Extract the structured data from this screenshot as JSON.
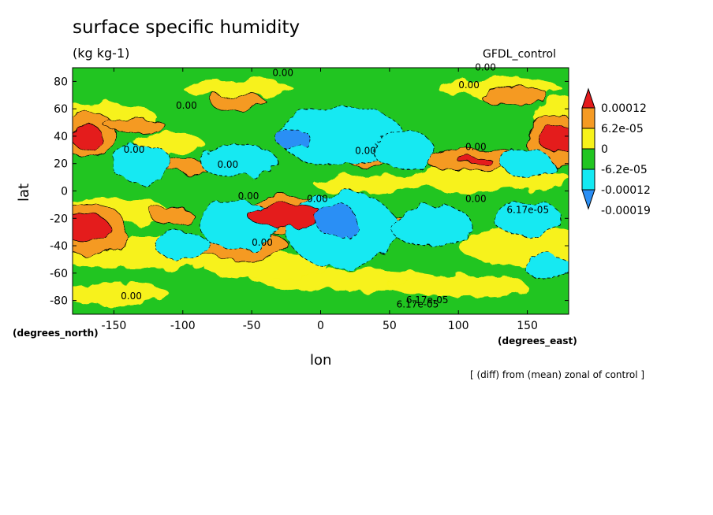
{
  "chart_data": {
    "type": "heatmap",
    "title": "surface specific humidity",
    "units": "(kg kg-1)",
    "dataset_label": "GFDL_control",
    "footnote": "[ (diff) from (mean) zonal of control ]",
    "xlabel": "lon",
    "ylabel": "lat",
    "x_unit_label": "(degrees_east)",
    "y_unit_label": "(degrees_north)",
    "xlim": [
      -180,
      180
    ],
    "ylim": [
      -90,
      90
    ],
    "x_ticks": [
      -150,
      -100,
      -50,
      0,
      50,
      100,
      150
    ],
    "y_ticks": [
      80,
      60,
      40,
      20,
      0,
      -20,
      -40,
      -60,
      -80
    ],
    "x_tick_labels": [
      "-150",
      "-100",
      "-50",
      "0",
      "50",
      "100",
      "150"
    ],
    "y_tick_labels": [
      "80",
      "60",
      "40",
      "20",
      "0",
      "-20",
      "-40",
      "-60",
      "-80"
    ],
    "colorbar": {
      "labels": [
        "0.00012",
        "6.2e-05",
        "0",
        "-6.2e-05",
        "-0.00012",
        "-0.00019"
      ],
      "colors": [
        "#e41a1c",
        "#f59a23",
        "#f7f21a",
        "#21c521",
        "#13e9f2",
        "#2a8ff5"
      ]
    },
    "contour_labels": [
      "0.00",
      "0.00",
      "0.00",
      "0.00",
      "0.00",
      "0.00",
      "0.00",
      "0.00",
      "0.00",
      "6.17e-05",
      "6.17e-05",
      "6.17e-05",
      "0.00",
      "0.00",
      "0.00",
      "0.00"
    ],
    "blobs": [
      {
        "lon": -170,
        "lat": 40,
        "level": 2,
        "rx": 12,
        "ry": 8
      },
      {
        "lon": -170,
        "lat": -28,
        "level": 2,
        "rx": 18,
        "ry": 10
      },
      {
        "lon": -25,
        "lat": -18,
        "level": 2,
        "rx": 28,
        "ry": 8
      },
      {
        "lon": 112,
        "lat": 22,
        "level": 2,
        "rx": 12,
        "ry": 3
      },
      {
        "lon": 172,
        "lat": 38,
        "level": 2,
        "rx": 14,
        "ry": 9
      },
      {
        "lon": -170,
        "lat": 42,
        "level": 1,
        "rx": 22,
        "ry": 16
      },
      {
        "lon": -168,
        "lat": -28,
        "level": 1,
        "rx": 28,
        "ry": 18
      },
      {
        "lon": -135,
        "lat": 48,
        "level": 1,
        "rx": 22,
        "ry": 5
      },
      {
        "lon": -100,
        "lat": 18,
        "level": 1,
        "rx": 20,
        "ry": 5
      },
      {
        "lon": -108,
        "lat": -18,
        "level": 1,
        "rx": 15,
        "ry": 7
      },
      {
        "lon": -58,
        "lat": -40,
        "level": 1,
        "rx": 35,
        "ry": 10
      },
      {
        "lon": -25,
        "lat": -18,
        "level": 1,
        "rx": 38,
        "ry": 14
      },
      {
        "lon": 35,
        "lat": 22,
        "level": 1,
        "rx": 15,
        "ry": 6
      },
      {
        "lon": 55,
        "lat": -22,
        "level": 1,
        "rx": 18,
        "ry": 6
      },
      {
        "lon": 112,
        "lat": 22,
        "level": 1,
        "rx": 35,
        "ry": 9
      },
      {
        "lon": 170,
        "lat": 38,
        "level": 1,
        "rx": 22,
        "ry": 18
      },
      {
        "lon": -60,
        "lat": 65,
        "level": 1,
        "rx": 20,
        "ry": 6
      },
      {
        "lon": 140,
        "lat": 70,
        "level": 1,
        "rx": 25,
        "ry": 6
      },
      {
        "lon": -130,
        "lat": 20,
        "level": -1,
        "rx": 22,
        "ry": 14
      },
      {
        "lon": -60,
        "lat": 22,
        "level": -1,
        "rx": 28,
        "ry": 12
      },
      {
        "lon": 15,
        "lat": 40,
        "level": -1,
        "rx": 45,
        "ry": 22
      },
      {
        "lon": 60,
        "lat": 30,
        "level": -1,
        "rx": 22,
        "ry": 14
      },
      {
        "lon": -60,
        "lat": -25,
        "level": -1,
        "rx": 28,
        "ry": 18
      },
      {
        "lon": 15,
        "lat": -28,
        "level": -1,
        "rx": 40,
        "ry": 28
      },
      {
        "lon": 80,
        "lat": -25,
        "level": -1,
        "rx": 30,
        "ry": 15
      },
      {
        "lon": 150,
        "lat": -20,
        "level": -1,
        "rx": 25,
        "ry": 12
      },
      {
        "lon": -100,
        "lat": -40,
        "level": -1,
        "rx": 20,
        "ry": 10
      },
      {
        "lon": 150,
        "lat": 20,
        "level": -1,
        "rx": 18,
        "ry": 10
      },
      {
        "lon": 165,
        "lat": -55,
        "level": -1,
        "rx": 18,
        "ry": 8
      },
      {
        "lon": 12,
        "lat": -22,
        "level": -2,
        "rx": 15,
        "ry": 12
      },
      {
        "lon": -20,
        "lat": 38,
        "level": -2,
        "rx": 12,
        "ry": 8
      }
    ]
  }
}
